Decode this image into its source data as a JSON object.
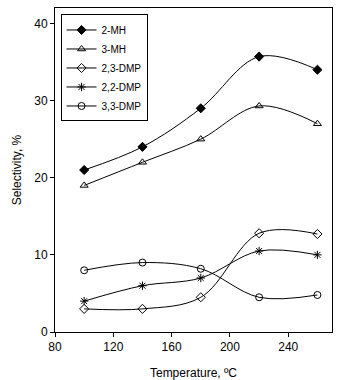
{
  "chart_data": {
    "type": "line",
    "x_label": "Temperature, ºC",
    "y_label": "Selectivity, %",
    "x": [
      100,
      140,
      180,
      220,
      260
    ],
    "series": [
      {
        "name": "2-MH",
        "color": "#000000",
        "marker": "diamond",
        "line_style": "solid",
        "values": [
          21,
          24,
          29,
          35.7,
          34
        ]
      },
      {
        "name": "3-MH",
        "color": "#000000",
        "marker": "triangle-up-open",
        "line_style": "solid",
        "values": [
          19,
          22,
          25,
          29.3,
          27
        ]
      },
      {
        "name": "2,3-DMP",
        "color": "#000000",
        "marker": "diamond-open",
        "line_style": "solid",
        "values": [
          3,
          3,
          4.5,
          12.8,
          12.7
        ]
      },
      {
        "name": "2,2-DMP",
        "color": "#000000",
        "marker": "asterisk-open",
        "line_style": "solid",
        "values": [
          4,
          6,
          7,
          10.5,
          10
        ]
      },
      {
        "name": "3,3-DMP",
        "color": "#000000",
        "marker": "circle-open",
        "line_style": "solid",
        "values": [
          8,
          9,
          8.2,
          4.5,
          4.8
        ]
      }
    ],
    "xlim": [
      80,
      270
    ],
    "xticks": [
      80,
      120,
      160,
      200,
      240
    ],
    "ylim": [
      0,
      42
    ],
    "yticks": [
      0,
      10,
      20,
      30,
      40
    ],
    "grid": false,
    "legend": "top-left"
  }
}
